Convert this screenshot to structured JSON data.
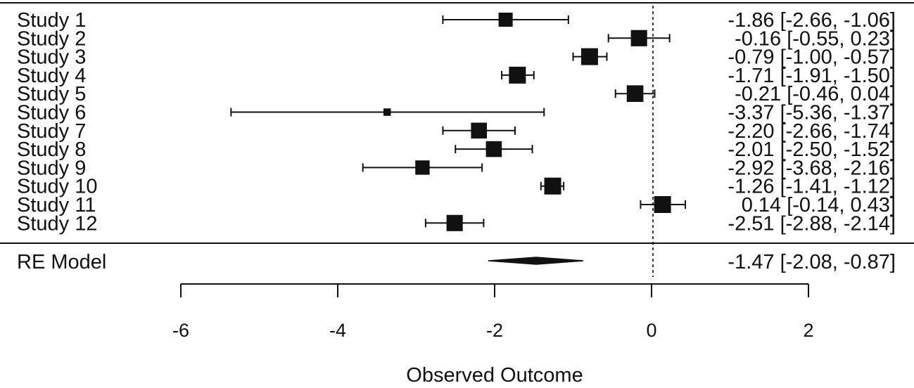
{
  "chart_data": {
    "type": "forest",
    "title": "",
    "xlabel": "Observed Outcome",
    "xlim": [
      -6,
      2
    ],
    "x_ticks": [
      "-6",
      "-4",
      "-2",
      "0",
      "2"
    ],
    "reference_line": 0,
    "studies": [
      {
        "label": "Study 1",
        "estimate": -1.86,
        "lower": -2.66,
        "upper": -1.06,
        "ci_text": "-1.86 [-2.66, -1.06]",
        "weight": 0.78
      },
      {
        "label": "Study 2",
        "estimate": -0.16,
        "lower": -0.55,
        "upper": 0.23,
        "ci_text": "-0.16 [-0.55, 0.23]",
        "weight": 0.95
      },
      {
        "label": "Study 3",
        "estimate": -0.79,
        "lower": -1.0,
        "upper": -0.57,
        "ci_text": "-0.79 [-1.00, -0.57]",
        "weight": 1.0
      },
      {
        "label": "Study 4",
        "estimate": -1.71,
        "lower": -1.91,
        "upper": -1.5,
        "ci_text": "-1.71 [-1.91, -1.50]",
        "weight": 1.0
      },
      {
        "label": "Study 5",
        "estimate": -0.21,
        "lower": -0.46,
        "upper": 0.04,
        "ci_text": "-0.21 [-0.46, 0.04]",
        "weight": 0.98
      },
      {
        "label": "Study 6",
        "estimate": -3.37,
        "lower": -5.36,
        "upper": -1.37,
        "ci_text": "-3.37 [-5.36, -1.37]",
        "weight": 0.25
      },
      {
        "label": "Study 7",
        "estimate": -2.2,
        "lower": -2.66,
        "upper": -1.74,
        "ci_text": "-2.20 [-2.66, -1.74]",
        "weight": 0.92
      },
      {
        "label": "Study 8",
        "estimate": -2.01,
        "lower": -2.5,
        "upper": -1.52,
        "ci_text": "-2.01 [-2.50, -1.52]",
        "weight": 0.92
      },
      {
        "label": "Study 9",
        "estimate": -2.92,
        "lower": -3.68,
        "upper": -2.16,
        "ci_text": "-2.92 [-3.68, -2.16]",
        "weight": 0.8
      },
      {
        "label": "Study 10",
        "estimate": -1.26,
        "lower": -1.41,
        "upper": -1.12,
        "ci_text": "-1.26 [-1.41, -1.12]",
        "weight": 1.0
      },
      {
        "label": "Study 11",
        "estimate": 0.14,
        "lower": -0.14,
        "upper": 0.43,
        "ci_text": "0.14 [-0.14, 0.43]",
        "weight": 1.0
      },
      {
        "label": "Study 12",
        "estimate": -2.51,
        "lower": -2.88,
        "upper": -2.14,
        "ci_text": "-2.51 [-2.88, -2.14]",
        "weight": 0.95
      }
    ],
    "summary": {
      "label": "RE Model",
      "estimate": -1.47,
      "lower": -2.08,
      "upper": -0.87,
      "ci_text": "-1.47 [-2.08, -0.87]"
    }
  }
}
